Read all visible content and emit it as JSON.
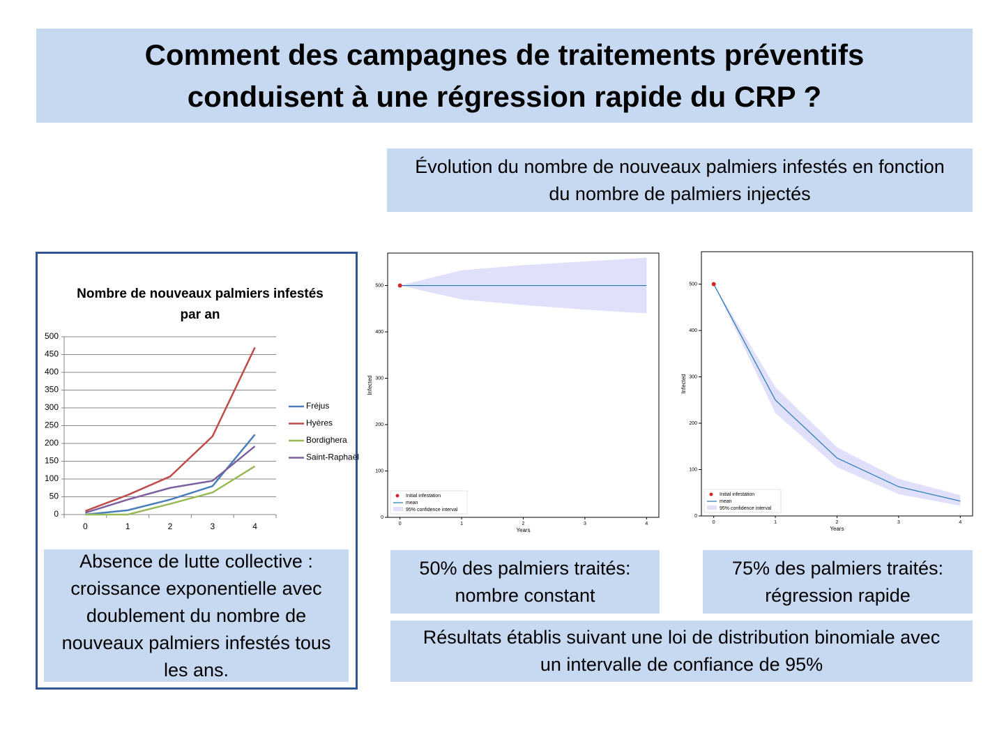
{
  "header": {
    "title": "Comment des campagnes de traitements préventifs conduisent à une régression rapide du CRP ?"
  },
  "subtitle": "Évolution du nombre de nouveaux palmiers infestés en fonction du nombre de palmiers injectés",
  "chart_data": [
    {
      "type": "line",
      "title": "Nombre de nouveaux palmiers infestés par an",
      "categories": [
        "0",
        "1",
        "2",
        "3",
        "4"
      ],
      "series": [
        {
          "name": "Fréjus",
          "color": "#4a7ebb",
          "values": [
            0,
            12,
            42,
            80,
            225
          ]
        },
        {
          "name": "Hyères",
          "color": "#be4b48",
          "values": [
            10,
            55,
            107,
            220,
            470
          ]
        },
        {
          "name": "Bordighera",
          "color": "#98b954",
          "values": [
            0,
            0,
            30,
            62,
            136
          ]
        },
        {
          "name": "Saint-Raphaël",
          "color": "#7d60a0",
          "values": [
            5,
            42,
            75,
            95,
            192
          ]
        }
      ],
      "ylim": [
        0,
        500
      ],
      "yticks": [
        0,
        50,
        100,
        150,
        200,
        250,
        300,
        350,
        400,
        450,
        500
      ],
      "grid": true,
      "legend": "right"
    },
    {
      "type": "line",
      "x": [
        0,
        1,
        2,
        3,
        4
      ],
      "xlim": [
        -0.2,
        4.2
      ],
      "xticks": [
        0,
        1,
        2,
        3,
        4
      ],
      "ylim": [
        0,
        570
      ],
      "yticks": [
        0,
        100,
        200,
        300,
        400,
        500
      ],
      "xlabel": "Years",
      "ylabel": "Infected",
      "points": {
        "name": "Initial infestation",
        "color": "#d62728",
        "x": [
          0
        ],
        "y": [
          500
        ]
      },
      "series": [
        {
          "name": "mean",
          "color": "#1f77b4",
          "values": [
            500,
            500,
            500,
            500,
            500
          ]
        }
      ],
      "band": {
        "name": "95% confidence interval",
        "color": "#e0e0fb",
        "lower": [
          500,
          470,
          458,
          448,
          440
        ],
        "upper": [
          500,
          533,
          544,
          552,
          560
        ]
      },
      "legend": "lower left"
    },
    {
      "type": "line",
      "x": [
        0,
        1,
        2,
        3,
        4
      ],
      "xlim": [
        -0.2,
        4.2
      ],
      "xticks": [
        0,
        1,
        2,
        3,
        4
      ],
      "ylim": [
        0,
        570
      ],
      "yticks": [
        0,
        100,
        200,
        300,
        400,
        500
      ],
      "xlabel": "Years",
      "ylabel": "Infected",
      "points": {
        "name": "Initial infestation",
        "color": "#d62728",
        "x": [
          0
        ],
        "y": [
          500
        ]
      },
      "series": [
        {
          "name": "mean",
          "color": "#1f77b4",
          "values": [
            500,
            250,
            125,
            63,
            32
          ]
        }
      ],
      "band": {
        "name": "95% confidence interval",
        "color": "#e0e0fb",
        "lower": [
          500,
          222,
          105,
          47,
          22
        ],
        "upper": [
          500,
          278,
          148,
          80,
          45
        ]
      },
      "legend": "lower left"
    }
  ],
  "captions": {
    "no_control": "Absence de lutte collective : croissance exponentielle avec doublement du nombre de nouveaux palmiers infestés tous les ans.",
    "treated_50": "50% des palmiers traités: nombre constant",
    "treated_75": "75% des palmiers traités: régression rapide",
    "method": "Résultats établis suivant une loi de distribution binomiale avec un intervalle de confiance de 95%"
  }
}
